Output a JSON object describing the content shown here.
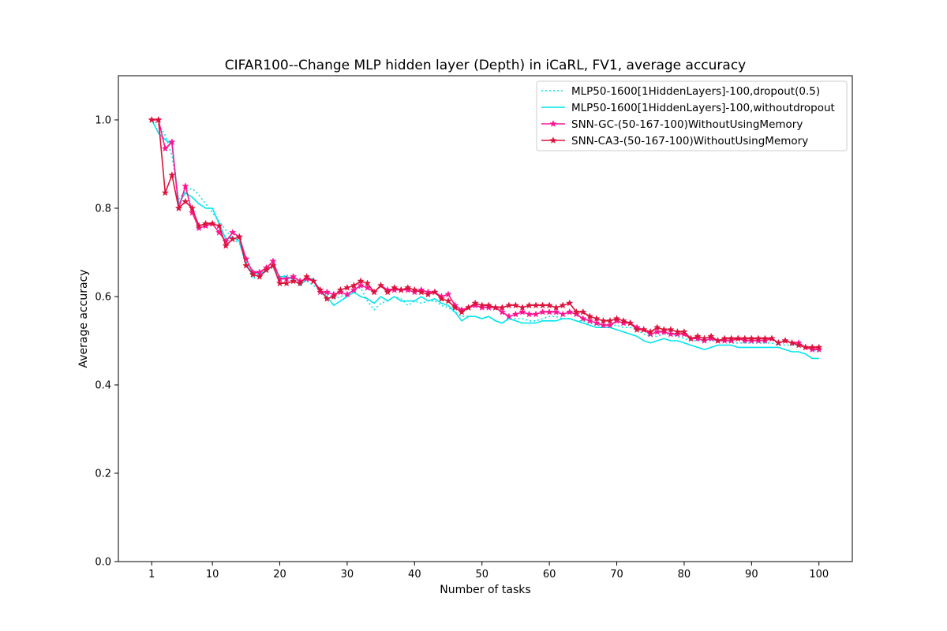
{
  "chart_data": {
    "type": "line",
    "title": "CIFAR100--Change MLP hidden layer (Depth) in iCaRL, FV1, average accuracy",
    "xlabel": "Number of tasks",
    "ylabel": "Average accuracy",
    "xlim": [
      -3.95,
      104.95
    ],
    "ylim": [
      0.0,
      1.1
    ],
    "xticks": [
      1,
      10,
      20,
      30,
      40,
      50,
      60,
      70,
      80,
      90,
      100
    ],
    "yticks": [
      0.0,
      0.2,
      0.4,
      0.6,
      0.8,
      1.0
    ],
    "ytick_labels": [
      "0.0",
      "0.2",
      "0.4",
      "0.6",
      "0.8",
      "1.0"
    ],
    "grid": false,
    "legend_position": "top-right",
    "x": [
      1,
      2,
      3,
      4,
      5,
      6,
      7,
      8,
      9,
      10,
      11,
      12,
      13,
      14,
      15,
      16,
      17,
      18,
      19,
      20,
      21,
      22,
      23,
      24,
      25,
      26,
      27,
      28,
      29,
      30,
      31,
      32,
      33,
      34,
      35,
      36,
      37,
      38,
      39,
      40,
      41,
      42,
      43,
      44,
      45,
      46,
      47,
      48,
      49,
      50,
      51,
      52,
      53,
      54,
      55,
      56,
      57,
      58,
      59,
      60,
      61,
      62,
      63,
      64,
      65,
      66,
      67,
      68,
      69,
      70,
      71,
      72,
      73,
      74,
      75,
      76,
      77,
      78,
      79,
      80,
      81,
      82,
      83,
      84,
      85,
      86,
      87,
      88,
      89,
      90,
      91,
      92,
      93,
      94,
      95,
      96,
      97,
      98,
      99,
      100
    ],
    "series": [
      {
        "name": "MLP50-1600[1HiddenLayers]-100,dropout(0.5)",
        "color": "#00e5ee",
        "style": "dotted",
        "marker": "none",
        "values": [
          1.0,
          0.99,
          0.965,
          0.92,
          0.82,
          0.84,
          0.845,
          0.83,
          0.81,
          0.79,
          0.77,
          0.75,
          0.73,
          0.72,
          0.68,
          0.64,
          0.65,
          0.66,
          0.665,
          0.64,
          0.65,
          0.635,
          0.63,
          0.635,
          0.625,
          0.615,
          0.605,
          0.595,
          0.6,
          0.605,
          0.615,
          0.62,
          0.59,
          0.57,
          0.585,
          0.59,
          0.6,
          0.595,
          0.58,
          0.59,
          0.585,
          0.59,
          0.59,
          0.58,
          0.575,
          0.565,
          0.555,
          0.555,
          0.555,
          0.55,
          0.555,
          0.545,
          0.54,
          0.55,
          0.55,
          0.55,
          0.545,
          0.545,
          0.55,
          0.555,
          0.555,
          0.55,
          0.55,
          0.545,
          0.545,
          0.54,
          0.535,
          0.535,
          0.535,
          0.535,
          0.53,
          0.53,
          0.525,
          0.515,
          0.51,
          0.51,
          0.515,
          0.515,
          0.51,
          0.505,
          0.5,
          0.5,
          0.5,
          0.5,
          0.5,
          0.5,
          0.495,
          0.495,
          0.495,
          0.495,
          0.495,
          0.495,
          0.495,
          0.49,
          0.49,
          0.49,
          0.49,
          0.485,
          0.48,
          0.475
        ]
      },
      {
        "name": "MLP50-1600[1HiddenLayers]-100,withoutdropout",
        "color": "#00e5ee",
        "style": "solid",
        "marker": "none",
        "values": [
          1.0,
          0.97,
          0.955,
          0.945,
          0.81,
          0.835,
          0.825,
          0.81,
          0.8,
          0.8,
          0.765,
          0.73,
          0.735,
          0.725,
          0.67,
          0.655,
          0.65,
          0.66,
          0.67,
          0.645,
          0.645,
          0.64,
          0.625,
          0.64,
          0.64,
          0.61,
          0.6,
          0.58,
          0.59,
          0.6,
          0.61,
          0.6,
          0.595,
          0.585,
          0.6,
          0.59,
          0.6,
          0.59,
          0.59,
          0.59,
          0.6,
          0.59,
          0.595,
          0.585,
          0.58,
          0.565,
          0.545,
          0.555,
          0.555,
          0.55,
          0.555,
          0.545,
          0.54,
          0.55,
          0.545,
          0.54,
          0.54,
          0.54,
          0.545,
          0.545,
          0.545,
          0.55,
          0.55,
          0.545,
          0.54,
          0.535,
          0.53,
          0.53,
          0.53,
          0.525,
          0.52,
          0.515,
          0.51,
          0.5,
          0.495,
          0.5,
          0.505,
          0.5,
          0.5,
          0.495,
          0.49,
          0.485,
          0.48,
          0.485,
          0.49,
          0.49,
          0.49,
          0.485,
          0.485,
          0.485,
          0.485,
          0.485,
          0.485,
          0.485,
          0.48,
          0.475,
          0.475,
          0.47,
          0.46,
          0.46
        ]
      },
      {
        "name": "SNN-GC-(50-167-100)WithoutUsingMemory",
        "color": "#ff1493",
        "style": "solid",
        "marker": "star",
        "values": [
          1.0,
          1.0,
          0.935,
          0.95,
          0.8,
          0.85,
          0.79,
          0.755,
          0.76,
          0.765,
          0.745,
          0.725,
          0.745,
          0.735,
          0.685,
          0.655,
          0.655,
          0.665,
          0.68,
          0.64,
          0.64,
          0.645,
          0.635,
          0.64,
          0.635,
          0.61,
          0.61,
          0.605,
          0.61,
          0.605,
          0.615,
          0.625,
          0.62,
          0.61,
          0.625,
          0.615,
          0.615,
          0.615,
          0.615,
          0.61,
          0.615,
          0.61,
          0.61,
          0.6,
          0.605,
          0.58,
          0.57,
          0.575,
          0.58,
          0.575,
          0.575,
          0.575,
          0.565,
          0.555,
          0.56,
          0.565,
          0.56,
          0.56,
          0.565,
          0.565,
          0.565,
          0.56,
          0.565,
          0.56,
          0.55,
          0.545,
          0.54,
          0.535,
          0.535,
          0.545,
          0.54,
          0.54,
          0.53,
          0.525,
          0.515,
          0.52,
          0.52,
          0.515,
          0.515,
          0.515,
          0.505,
          0.505,
          0.5,
          0.505,
          0.5,
          0.5,
          0.5,
          0.505,
          0.5,
          0.5,
          0.5,
          0.5,
          0.505,
          0.495,
          0.5,
          0.495,
          0.495,
          0.485,
          0.48,
          0.48
        ]
      },
      {
        "name": "SNN-CA3-(50-167-100)WithoutUsingMemory",
        "color": "#dc143c",
        "style": "solid",
        "marker": "star",
        "values": [
          1.0,
          1.0,
          0.835,
          0.875,
          0.8,
          0.815,
          0.8,
          0.76,
          0.765,
          0.765,
          0.76,
          0.715,
          0.73,
          0.735,
          0.67,
          0.65,
          0.645,
          0.66,
          0.67,
          0.63,
          0.63,
          0.635,
          0.63,
          0.645,
          0.635,
          0.615,
          0.595,
          0.6,
          0.615,
          0.62,
          0.625,
          0.635,
          0.63,
          0.61,
          0.625,
          0.61,
          0.62,
          0.615,
          0.62,
          0.615,
          0.61,
          0.605,
          0.61,
          0.595,
          0.59,
          0.575,
          0.565,
          0.575,
          0.585,
          0.58,
          0.58,
          0.575,
          0.575,
          0.58,
          0.58,
          0.575,
          0.58,
          0.58,
          0.58,
          0.58,
          0.575,
          0.58,
          0.585,
          0.565,
          0.565,
          0.555,
          0.55,
          0.545,
          0.545,
          0.55,
          0.545,
          0.54,
          0.525,
          0.525,
          0.52,
          0.53,
          0.525,
          0.525,
          0.52,
          0.52,
          0.505,
          0.51,
          0.505,
          0.51,
          0.5,
          0.505,
          0.505,
          0.505,
          0.505,
          0.505,
          0.505,
          0.505,
          0.505,
          0.495,
          0.5,
          0.495,
          0.49,
          0.485,
          0.485,
          0.485
        ]
      }
    ]
  }
}
